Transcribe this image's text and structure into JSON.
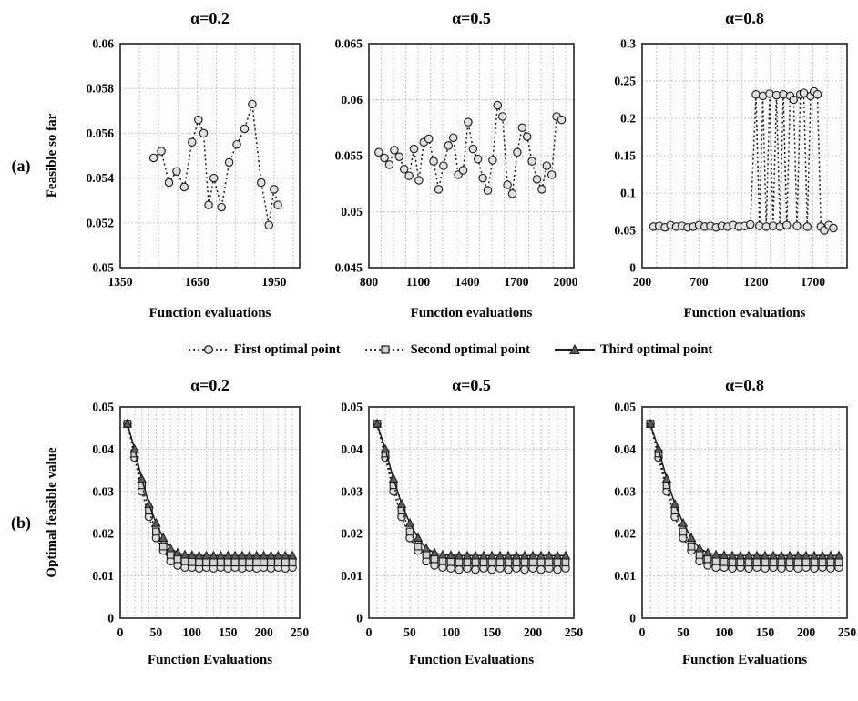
{
  "figure": {
    "row_a_label": "(a)",
    "row_b_label": "(b)",
    "legend": [
      {
        "label": "First optimal point",
        "marker": "circle",
        "line": "dotted"
      },
      {
        "label": "Second optimal point",
        "marker": "square",
        "line": "dotted"
      },
      {
        "label": "Third optimal point",
        "marker": "triangle",
        "line": "solid"
      }
    ],
    "colors": {
      "line": "#1a1a1a",
      "grid": "#b5b5b5",
      "frame": "#3a3a3a",
      "circle_fill": "#e0e0e0",
      "square_fill": "#d2d2d2",
      "triangle_fill": "#5a5a5a"
    }
  },
  "chart_data": [
    {
      "id": "a-alpha-0.2",
      "type": "scatter",
      "title": "α=0.2",
      "xlabel": "Function evaluations",
      "ylabel": "Feasible so far",
      "xlim": [
        1350,
        2050
      ],
      "xticks": [
        1350,
        1650,
        1950
      ],
      "xminor": 4,
      "ylim": [
        0.05,
        0.06
      ],
      "yticks": [
        0.05,
        0.052,
        0.054,
        0.056,
        0.058,
        0.06
      ],
      "grid": true,
      "legend_position": "none",
      "series": [
        {
          "name": "Feasible so far",
          "marker": "circle",
          "line": "dotted",
          "marker_fill": "#e0e0e0",
          "x": [
            1480,
            1510,
            1540,
            1570,
            1600,
            1630,
            1655,
            1675,
            1695,
            1715,
            1745,
            1775,
            1805,
            1835,
            1865,
            1900,
            1930,
            1950,
            1965
          ],
          "y": [
            0.0549,
            0.0552,
            0.0538,
            0.0543,
            0.0536,
            0.0556,
            0.0566,
            0.056,
            0.0528,
            0.054,
            0.0527,
            0.0547,
            0.0555,
            0.0562,
            0.0573,
            0.0538,
            0.0519,
            0.0535,
            0.0528
          ]
        }
      ]
    },
    {
      "id": "a-alpha-0.5",
      "type": "scatter",
      "title": "α=0.5",
      "xlabel": "Function evaluations",
      "ylabel": "",
      "xlim": [
        800,
        2050
      ],
      "xticks": [
        800,
        1100,
        1400,
        1700,
        2000
      ],
      "xminor": 4,
      "ylim": [
        0.045,
        0.065
      ],
      "yticks": [
        0.045,
        0.05,
        0.055,
        0.06,
        0.065
      ],
      "grid": true,
      "legend_position": "none",
      "series": [
        {
          "name": "Feasible so far",
          "marker": "circle",
          "line": "dotted",
          "marker_fill": "#e0e0e0",
          "x": [
            860,
            895,
            925,
            955,
            985,
            1015,
            1045,
            1075,
            1105,
            1135,
            1165,
            1195,
            1225,
            1255,
            1285,
            1315,
            1345,
            1375,
            1405,
            1435,
            1465,
            1495,
            1525,
            1555,
            1585,
            1615,
            1645,
            1675,
            1705,
            1735,
            1765,
            1795,
            1825,
            1855,
            1885,
            1915,
            1945,
            1975
          ],
          "y": [
            0.0553,
            0.0548,
            0.0542,
            0.0555,
            0.0549,
            0.0538,
            0.0532,
            0.0556,
            0.0528,
            0.0562,
            0.0565,
            0.0545,
            0.052,
            0.0541,
            0.0559,
            0.0566,
            0.0533,
            0.0537,
            0.058,
            0.0556,
            0.0547,
            0.053,
            0.0519,
            0.0546,
            0.0595,
            0.0585,
            0.0524,
            0.0516,
            0.0553,
            0.0575,
            0.0567,
            0.0545,
            0.0529,
            0.052,
            0.0541,
            0.0533,
            0.0585,
            0.0582
          ]
        }
      ]
    },
    {
      "id": "a-alpha-0.8",
      "type": "scatter",
      "title": "α=0.8",
      "xlabel": "Function evaluations",
      "ylabel": "",
      "xlim": [
        200,
        2000
      ],
      "xticks": [
        200,
        700,
        1200,
        1700
      ],
      "xminor": 4,
      "ylim": [
        0,
        0.3
      ],
      "yticks": [
        0,
        0.05,
        0.1,
        0.15,
        0.2,
        0.25,
        0.3
      ],
      "grid": true,
      "legend_position": "none",
      "series": [
        {
          "name": "Feasible so far",
          "marker": "circle",
          "line": "dotted",
          "marker_fill": "#e0e0e0",
          "x": [
            300,
            350,
            400,
            450,
            500,
            550,
            600,
            650,
            700,
            750,
            800,
            850,
            900,
            950,
            1000,
            1050,
            1100,
            1150,
            1200,
            1230,
            1260,
            1290,
            1320,
            1350,
            1380,
            1410,
            1440,
            1470,
            1500,
            1530,
            1560,
            1590,
            1620,
            1650,
            1680,
            1710,
            1740,
            1770,
            1800,
            1840,
            1880
          ],
          "y": [
            0.055,
            0.056,
            0.054,
            0.057,
            0.055,
            0.056,
            0.054,
            0.055,
            0.057,
            0.055,
            0.056,
            0.054,
            0.056,
            0.055,
            0.057,
            0.055,
            0.056,
            0.058,
            0.232,
            0.056,
            0.23,
            0.055,
            0.233,
            0.056,
            0.231,
            0.055,
            0.232,
            0.057,
            0.23,
            0.225,
            0.056,
            0.232,
            0.234,
            0.055,
            0.23,
            0.236,
            0.232,
            0.055,
            0.05,
            0.057,
            0.053
          ]
        }
      ]
    },
    {
      "id": "b-alpha-0.2",
      "type": "line",
      "title": "α=0.2",
      "xlabel": "Function Evaluations",
      "ylabel": "Optimal feasible value",
      "xlim": [
        0,
        250
      ],
      "xticks": [
        0,
        50,
        100,
        150,
        200,
        250
      ],
      "xminor": 5,
      "ylim": [
        0,
        0.05
      ],
      "yticks": [
        0,
        0.01,
        0.02,
        0.03,
        0.04,
        0.05
      ],
      "grid": true,
      "legend_position": "shared-top",
      "series": [
        {
          "name": "First optimal point",
          "marker": "circle",
          "line": "dotted",
          "marker_fill": "#e0e0e0",
          "x": [
            10,
            20,
            30,
            40,
            50,
            60,
            70,
            80,
            90,
            100,
            110,
            120,
            130,
            140,
            150,
            160,
            170,
            180,
            190,
            200,
            210,
            220,
            230,
            240
          ],
          "y": [
            0.046,
            0.038,
            0.03,
            0.024,
            0.019,
            0.016,
            0.0135,
            0.0125,
            0.012,
            0.012,
            0.0118,
            0.012,
            0.0118,
            0.012,
            0.0118,
            0.012,
            0.0118,
            0.012,
            0.0118,
            0.012,
            0.0118,
            0.012,
            0.0118,
            0.012
          ]
        },
        {
          "name": "Second optimal point",
          "marker": "square",
          "line": "dotted",
          "marker_fill": "#d2d2d2",
          "x": [
            10,
            20,
            30,
            40,
            50,
            60,
            70,
            80,
            90,
            100,
            110,
            120,
            130,
            140,
            150,
            160,
            170,
            180,
            190,
            200,
            210,
            220,
            230,
            240
          ],
          "y": [
            0.046,
            0.039,
            0.0315,
            0.0255,
            0.0205,
            0.017,
            0.015,
            0.014,
            0.0135,
            0.0133,
            0.0132,
            0.0132,
            0.0132,
            0.0132,
            0.0132,
            0.0132,
            0.0132,
            0.0132,
            0.0132,
            0.0132,
            0.0132,
            0.0132,
            0.0132,
            0.0132
          ]
        },
        {
          "name": "Third optimal point",
          "marker": "triangle",
          "line": "solid",
          "marker_fill": "#5a5a5a",
          "x": [
            10,
            20,
            30,
            40,
            50,
            60,
            70,
            80,
            90,
            100,
            110,
            120,
            130,
            140,
            150,
            160,
            170,
            180,
            190,
            200,
            210,
            220,
            230,
            240
          ],
          "y": [
            0.046,
            0.04,
            0.033,
            0.027,
            0.0225,
            0.019,
            0.0165,
            0.0155,
            0.015,
            0.0149,
            0.0148,
            0.0148,
            0.0148,
            0.0148,
            0.0148,
            0.0148,
            0.0148,
            0.0148,
            0.0148,
            0.0148,
            0.0148,
            0.0148,
            0.0148,
            0.0148
          ]
        }
      ]
    },
    {
      "id": "b-alpha-0.5",
      "type": "line",
      "title": "α=0.5",
      "xlabel": "Function Evaluations",
      "ylabel": "",
      "xlim": [
        0,
        250
      ],
      "xticks": [
        0,
        50,
        100,
        150,
        200,
        250
      ],
      "xminor": 5,
      "ylim": [
        0,
        0.05
      ],
      "yticks": [
        0,
        0.01,
        0.02,
        0.03,
        0.04,
        0.05
      ],
      "grid": true,
      "legend_position": "shared-top",
      "series": [
        {
          "name": "First optimal point",
          "marker": "circle",
          "line": "dotted",
          "marker_fill": "#e0e0e0",
          "x": [
            10,
            20,
            30,
            40,
            50,
            60,
            70,
            80,
            90,
            100,
            110,
            120,
            130,
            140,
            150,
            160,
            170,
            180,
            190,
            200,
            210,
            220,
            230,
            240
          ],
          "y": [
            0.046,
            0.038,
            0.03,
            0.024,
            0.019,
            0.016,
            0.0135,
            0.0125,
            0.012,
            0.0118,
            0.0115,
            0.0118,
            0.0115,
            0.0118,
            0.0115,
            0.0118,
            0.0115,
            0.0118,
            0.0115,
            0.0118,
            0.0115,
            0.0118,
            0.0115,
            0.0118
          ]
        },
        {
          "name": "Second optimal point",
          "marker": "square",
          "line": "dotted",
          "marker_fill": "#d2d2d2",
          "x": [
            10,
            20,
            30,
            40,
            50,
            60,
            70,
            80,
            90,
            100,
            110,
            120,
            130,
            140,
            150,
            160,
            170,
            180,
            190,
            200,
            210,
            220,
            230,
            240
          ],
          "y": [
            0.046,
            0.039,
            0.0315,
            0.0255,
            0.0205,
            0.017,
            0.015,
            0.014,
            0.0135,
            0.0133,
            0.0132,
            0.0132,
            0.0132,
            0.0132,
            0.0132,
            0.0132,
            0.0132,
            0.0132,
            0.0132,
            0.0132,
            0.0132,
            0.0132,
            0.0132,
            0.0132
          ]
        },
        {
          "name": "Third optimal point",
          "marker": "triangle",
          "line": "solid",
          "marker_fill": "#5a5a5a",
          "x": [
            10,
            20,
            30,
            40,
            50,
            60,
            70,
            80,
            90,
            100,
            110,
            120,
            130,
            140,
            150,
            160,
            170,
            180,
            190,
            200,
            210,
            220,
            230,
            240
          ],
          "y": [
            0.046,
            0.04,
            0.033,
            0.027,
            0.0225,
            0.019,
            0.0165,
            0.0155,
            0.015,
            0.0149,
            0.0148,
            0.0148,
            0.0148,
            0.0148,
            0.0148,
            0.0148,
            0.0148,
            0.0148,
            0.0148,
            0.0148,
            0.0148,
            0.0148,
            0.0148,
            0.0148
          ]
        }
      ]
    },
    {
      "id": "b-alpha-0.8",
      "type": "line",
      "title": "α=0.8",
      "xlabel": "Function Evaluations",
      "ylabel": "",
      "xlim": [
        0,
        250
      ],
      "xticks": [
        0,
        50,
        100,
        150,
        200,
        250
      ],
      "xminor": 5,
      "ylim": [
        0,
        0.05
      ],
      "yticks": [
        0,
        0.01,
        0.02,
        0.03,
        0.04,
        0.05
      ],
      "grid": true,
      "legend_position": "shared-top",
      "series": [
        {
          "name": "First optimal point",
          "marker": "circle",
          "line": "dotted",
          "marker_fill": "#e0e0e0",
          "x": [
            10,
            20,
            30,
            40,
            50,
            60,
            70,
            80,
            90,
            100,
            110,
            120,
            130,
            140,
            150,
            160,
            170,
            180,
            190,
            200,
            210,
            220,
            230,
            240
          ],
          "y": [
            0.046,
            0.038,
            0.03,
            0.024,
            0.019,
            0.016,
            0.0135,
            0.0125,
            0.012,
            0.012,
            0.0118,
            0.012,
            0.0118,
            0.012,
            0.0118,
            0.012,
            0.0118,
            0.012,
            0.0118,
            0.012,
            0.0118,
            0.012,
            0.0118,
            0.012
          ]
        },
        {
          "name": "Second optimal point",
          "marker": "square",
          "line": "dotted",
          "marker_fill": "#d2d2d2",
          "x": [
            10,
            20,
            30,
            40,
            50,
            60,
            70,
            80,
            90,
            100,
            110,
            120,
            130,
            140,
            150,
            160,
            170,
            180,
            190,
            200,
            210,
            220,
            230,
            240
          ],
          "y": [
            0.046,
            0.039,
            0.0315,
            0.0255,
            0.0205,
            0.017,
            0.015,
            0.014,
            0.0135,
            0.0133,
            0.0132,
            0.0132,
            0.0132,
            0.0132,
            0.0132,
            0.0132,
            0.0132,
            0.0132,
            0.0132,
            0.0132,
            0.0132,
            0.0132,
            0.0132,
            0.0132
          ]
        },
        {
          "name": "Third optimal point",
          "marker": "triangle",
          "line": "solid",
          "marker_fill": "#5a5a5a",
          "x": [
            10,
            20,
            30,
            40,
            50,
            60,
            70,
            80,
            90,
            100,
            110,
            120,
            130,
            140,
            150,
            160,
            170,
            180,
            190,
            200,
            210,
            220,
            230,
            240
          ],
          "y": [
            0.046,
            0.04,
            0.033,
            0.027,
            0.0225,
            0.019,
            0.0165,
            0.0155,
            0.015,
            0.0149,
            0.0148,
            0.0148,
            0.0148,
            0.0148,
            0.0148,
            0.0148,
            0.0148,
            0.0148,
            0.0148,
            0.0148,
            0.0148,
            0.0148,
            0.0148,
            0.0148
          ]
        }
      ]
    }
  ]
}
